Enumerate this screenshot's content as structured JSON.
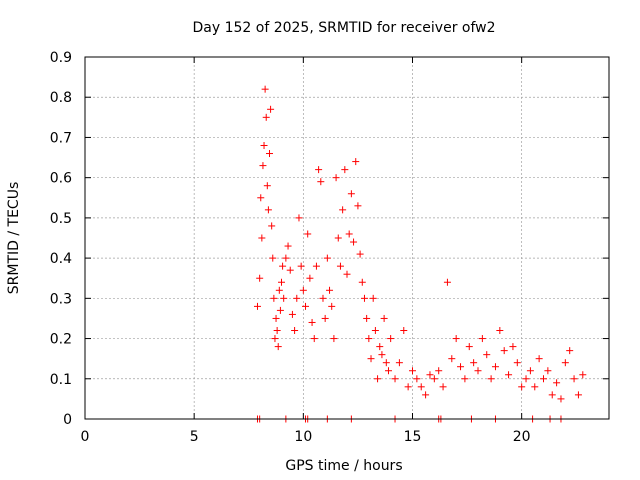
{
  "chart_data": {
    "type": "scatter",
    "title": "Day 152 of 2025, SRMTID for receiver ofw2",
    "xlabel": "GPS time / hours",
    "ylabel": "SRMTID / TECUs",
    "xlim": [
      0,
      24
    ],
    "ylim": [
      0,
      0.9
    ],
    "xticks": [
      "0",
      "5",
      "10",
      "15",
      "20"
    ],
    "xtick_values": [
      0,
      5,
      10,
      15,
      20
    ],
    "yticks": [
      "0",
      "0.1",
      "0.2",
      "0.3",
      "0.4",
      "0.5",
      "0.6",
      "0.7",
      "0.8",
      "0.9"
    ],
    "ytick_values": [
      0,
      0.1,
      0.2,
      0.3,
      0.4,
      0.5,
      0.6,
      0.7,
      0.8,
      0.9
    ],
    "grid": true,
    "marker": "plus",
    "color": "#ff0000",
    "series": [
      {
        "name": "SRMTID",
        "x": [
          7.9,
          8.0,
          8.05,
          8.1,
          8.15,
          8.2,
          8.25,
          8.3,
          8.35,
          8.4,
          8.45,
          8.5,
          8.55,
          8.6,
          8.65,
          8.7,
          8.75,
          8.8,
          8.85,
          8.9,
          8.95,
          9.0,
          9.05,
          9.1,
          9.2,
          9.3,
          9.4,
          9.5,
          9.6,
          9.7,
          9.8,
          9.9,
          10.0,
          10.1,
          10.2,
          10.3,
          10.4,
          10.5,
          10.6,
          10.7,
          10.8,
          10.9,
          11.0,
          11.1,
          11.2,
          11.3,
          11.4,
          11.5,
          11.6,
          11.7,
          11.8,
          11.9,
          12.0,
          12.1,
          12.2,
          12.3,
          12.4,
          12.5,
          12.6,
          12.7,
          12.8,
          12.9,
          13.0,
          13.1,
          13.2,
          13.3,
          13.4,
          13.5,
          13.6,
          13.7,
          13.8,
          13.9,
          14.0,
          14.2,
          14.4,
          14.6,
          14.8,
          15.0,
          15.2,
          15.4,
          15.6,
          15.8,
          16.0,
          16.2,
          16.4,
          16.6,
          16.8,
          17.0,
          17.2,
          17.4,
          17.6,
          17.8,
          18.0,
          18.2,
          18.4,
          18.6,
          18.8,
          19.0,
          19.2,
          19.4,
          19.6,
          19.8,
          20.0,
          20.2,
          20.4,
          20.6,
          20.8,
          21.0,
          21.2,
          21.4,
          21.6,
          21.8,
          22.0,
          22.2,
          22.4,
          22.6,
          22.8
        ],
        "y": [
          0.28,
          0.35,
          0.55,
          0.45,
          0.63,
          0.68,
          0.82,
          0.75,
          0.58,
          0.52,
          0.66,
          0.77,
          0.48,
          0.4,
          0.3,
          0.2,
          0.25,
          0.22,
          0.18,
          0.32,
          0.27,
          0.34,
          0.38,
          0.3,
          0.4,
          0.43,
          0.37,
          0.26,
          0.22,
          0.3,
          0.5,
          0.38,
          0.32,
          0.28,
          0.46,
          0.35,
          0.24,
          0.2,
          0.38,
          0.62,
          0.59,
          0.3,
          0.25,
          0.4,
          0.32,
          0.28,
          0.2,
          0.6,
          0.45,
          0.38,
          0.52,
          0.62,
          0.36,
          0.46,
          0.56,
          0.44,
          0.64,
          0.53,
          0.41,
          0.34,
          0.3,
          0.25,
          0.2,
          0.15,
          0.3,
          0.22,
          0.1,
          0.18,
          0.16,
          0.25,
          0.14,
          0.12,
          0.2,
          0.1,
          0.14,
          0.22,
          0.08,
          0.12,
          0.1,
          0.08,
          0.06,
          0.11,
          0.1,
          0.12,
          0.08,
          0.34,
          0.15,
          0.2,
          0.13,
          0.1,
          0.18,
          0.14,
          0.12,
          0.2,
          0.16,
          0.1,
          0.13,
          0.22,
          0.17,
          0.11,
          0.18,
          0.14,
          0.08,
          0.1,
          0.12,
          0.08,
          0.15,
          0.1,
          0.12,
          0.06,
          0.09,
          0.05,
          0.14,
          0.17,
          0.1,
          0.06,
          0.11
        ]
      }
    ],
    "zero_markers_x": [
      7.9,
      8.0,
      9.2,
      10.1,
      10.2,
      11.1,
      12.2,
      14.2,
      16.2,
      16.3,
      17.7,
      18.8,
      20.5,
      21.3,
      21.8
    ]
  }
}
